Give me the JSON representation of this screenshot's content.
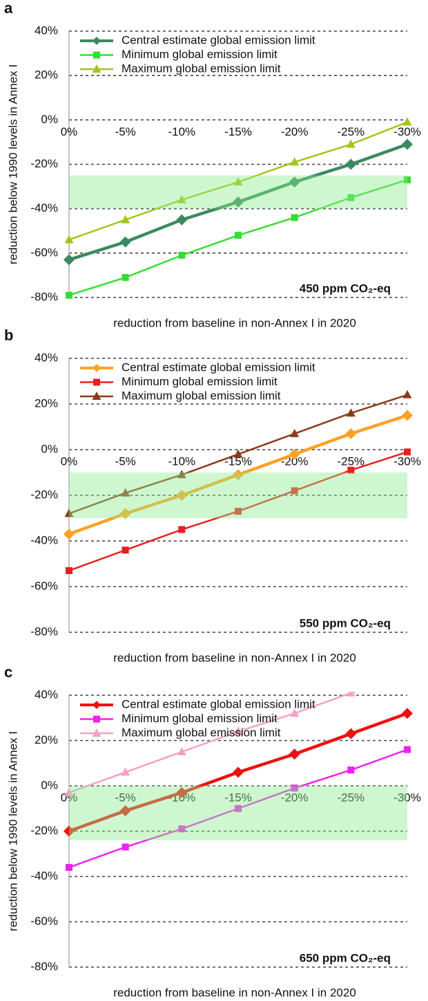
{
  "chart_data": [
    {
      "type": "line",
      "label": "a",
      "y_label": "reduction below 1990 levels in Annex I",
      "x_label": "reduction from baseline in non-Annex I in 2020",
      "annotation": "450 ppm CO₂-eq",
      "categories": [
        "0%",
        "-5%",
        "-10%",
        "-15%",
        "-20%",
        "-25%",
        "-30%"
      ],
      "series": [
        {
          "name": "Central estimate global emission limit",
          "color": "#3a8a5e",
          "marker": "diamond",
          "values": [
            -63,
            -55,
            -45,
            -37,
            -28,
            -20,
            -11
          ]
        },
        {
          "name": "Minimum global emission limit",
          "color": "#33dd33",
          "marker": "square",
          "values": [
            -79,
            -71,
            -61,
            -52,
            -44,
            -35,
            -27
          ]
        },
        {
          "name": "Maximum global emission limit",
          "color": "#a3c51c",
          "marker": "triangle",
          "values": [
            -54,
            -45,
            -36,
            -28,
            -19,
            -11,
            -1
          ]
        }
      ],
      "ylim": [
        -80,
        40
      ],
      "yticks": [
        {
          "value": 40,
          "label": "40%"
        },
        {
          "value": 20,
          "label": "20%"
        },
        {
          "value": 0,
          "label": "0%"
        },
        {
          "value": -20,
          "label": "-20%"
        },
        {
          "value": -40,
          "label": "-40%"
        },
        {
          "value": -60,
          "label": "-60%"
        },
        {
          "value": -80,
          "label": "-80%"
        }
      ],
      "grid": true,
      "band": [
        -40,
        -25
      ]
    },
    {
      "type": "line",
      "label": "b",
      "x_label": "reduction from baseline in non-Annex I in 2020",
      "annotation": "550 ppm CO₂-eq",
      "categories": [
        "0%",
        "-5%",
        "-10%",
        "-15%",
        "-20%",
        "-25%",
        "-30%"
      ],
      "series": [
        {
          "name": "Central estimate global emission limit",
          "color": "#ffa223",
          "marker": "diamond",
          "values": [
            -37,
            -28,
            -20,
            -11,
            -2,
            7,
            15
          ]
        },
        {
          "name": "Minimum global emission limit",
          "color": "#e82020",
          "marker": "square",
          "values": [
            -53,
            -44,
            -35,
            -27,
            -18,
            -9,
            -1
          ]
        },
        {
          "name": "Maximum global emission limit",
          "color": "#8b3a1a",
          "marker": "triangle",
          "values": [
            -28,
            -19,
            -11,
            -2,
            7,
            16,
            24
          ]
        }
      ],
      "ylim": [
        -80,
        40
      ],
      "yticks": [
        {
          "value": 40,
          "label": "40%"
        },
        {
          "value": 20,
          "label": "20%"
        },
        {
          "value": 0,
          "label": "0%"
        },
        {
          "value": -20,
          "label": "-20%"
        },
        {
          "value": -40,
          "label": "-40%"
        },
        {
          "value": -60,
          "label": "-60%"
        },
        {
          "value": -80,
          "label": "-80%"
        }
      ],
      "grid": true,
      "band": [
        -30,
        -10
      ]
    },
    {
      "type": "line",
      "label": "c",
      "y_label": "reduction below 1990 levels in Annex I",
      "x_label": "reduction from baseline in non-Annex I in 2020",
      "annotation": "650 ppm CO₂-eq",
      "categories": [
        "0%",
        "-5%",
        "-10%",
        "-15%",
        "-20%",
        "-25%",
        "-30%"
      ],
      "series": [
        {
          "name": "Central estimate global emission limit",
          "color": "#ee1111",
          "marker": "diamond",
          "values": [
            -20,
            -11,
            -3,
            6,
            14,
            23,
            32
          ]
        },
        {
          "name": "Minimum global emission limit",
          "color": "#ee22ee",
          "marker": "square",
          "values": [
            -36,
            -27,
            -19,
            -10,
            -1,
            7,
            16
          ]
        },
        {
          "name": "Maximum global emission limit",
          "color": "#f4a0c8",
          "marker": "triangle",
          "values": [
            -3,
            6,
            15,
            24,
            32,
            41,
            50
          ]
        }
      ],
      "ylim": [
        -80,
        40
      ],
      "yticks": [
        {
          "value": 40,
          "label": "40%"
        },
        {
          "value": 20,
          "label": "20%"
        },
        {
          "value": 0,
          "label": "0%"
        },
        {
          "value": -20,
          "label": "-20%"
        },
        {
          "value": -40,
          "label": "-40%"
        },
        {
          "value": -60,
          "label": "-60%"
        },
        {
          "value": -80,
          "label": "-80%"
        }
      ],
      "grid": true,
      "band": [
        -24,
        0
      ]
    }
  ]
}
